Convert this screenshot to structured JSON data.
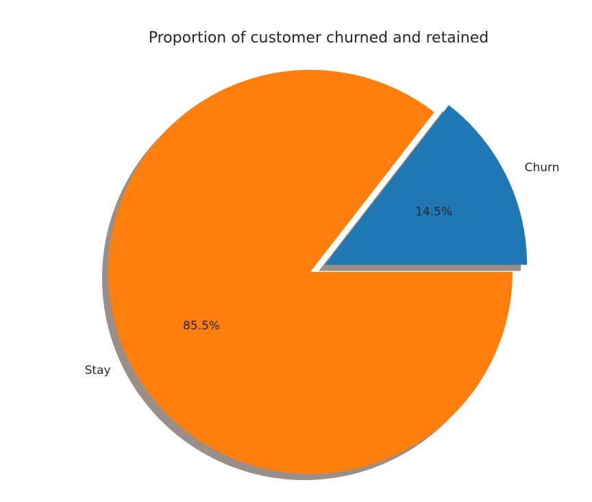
{
  "chart_data": {
    "type": "pie",
    "title": "Proportion of customer churned and retained",
    "slices": [
      {
        "label": "Churn",
        "value": 14.5,
        "pct_label": "14.5%",
        "color": "#1f77b4",
        "exploded": true
      },
      {
        "label": "Stay",
        "value": 85.5,
        "pct_label": "85.5%",
        "color": "#ff7f0e",
        "exploded": false
      }
    ],
    "start_angle_deg": 0,
    "direction": "counterclockwise",
    "shadow": true,
    "shadow_color": "#9a8e86"
  }
}
